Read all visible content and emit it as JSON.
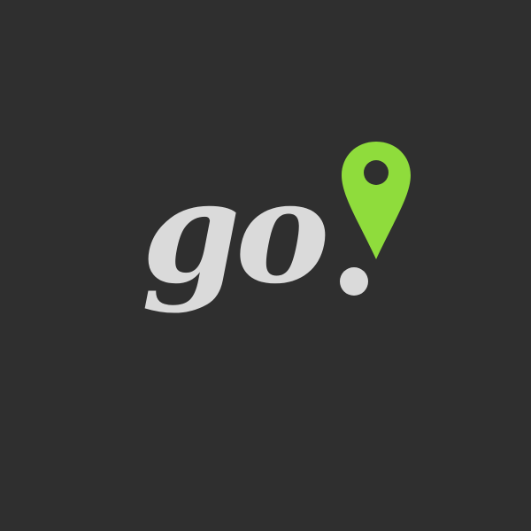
{
  "logo": {
    "text": "go",
    "text_color": "#dadada",
    "icon": "location-pin-icon",
    "pin_color": "#8fdc3c",
    "dot_color": "#dadada"
  },
  "background_color": "#2f2f2f"
}
